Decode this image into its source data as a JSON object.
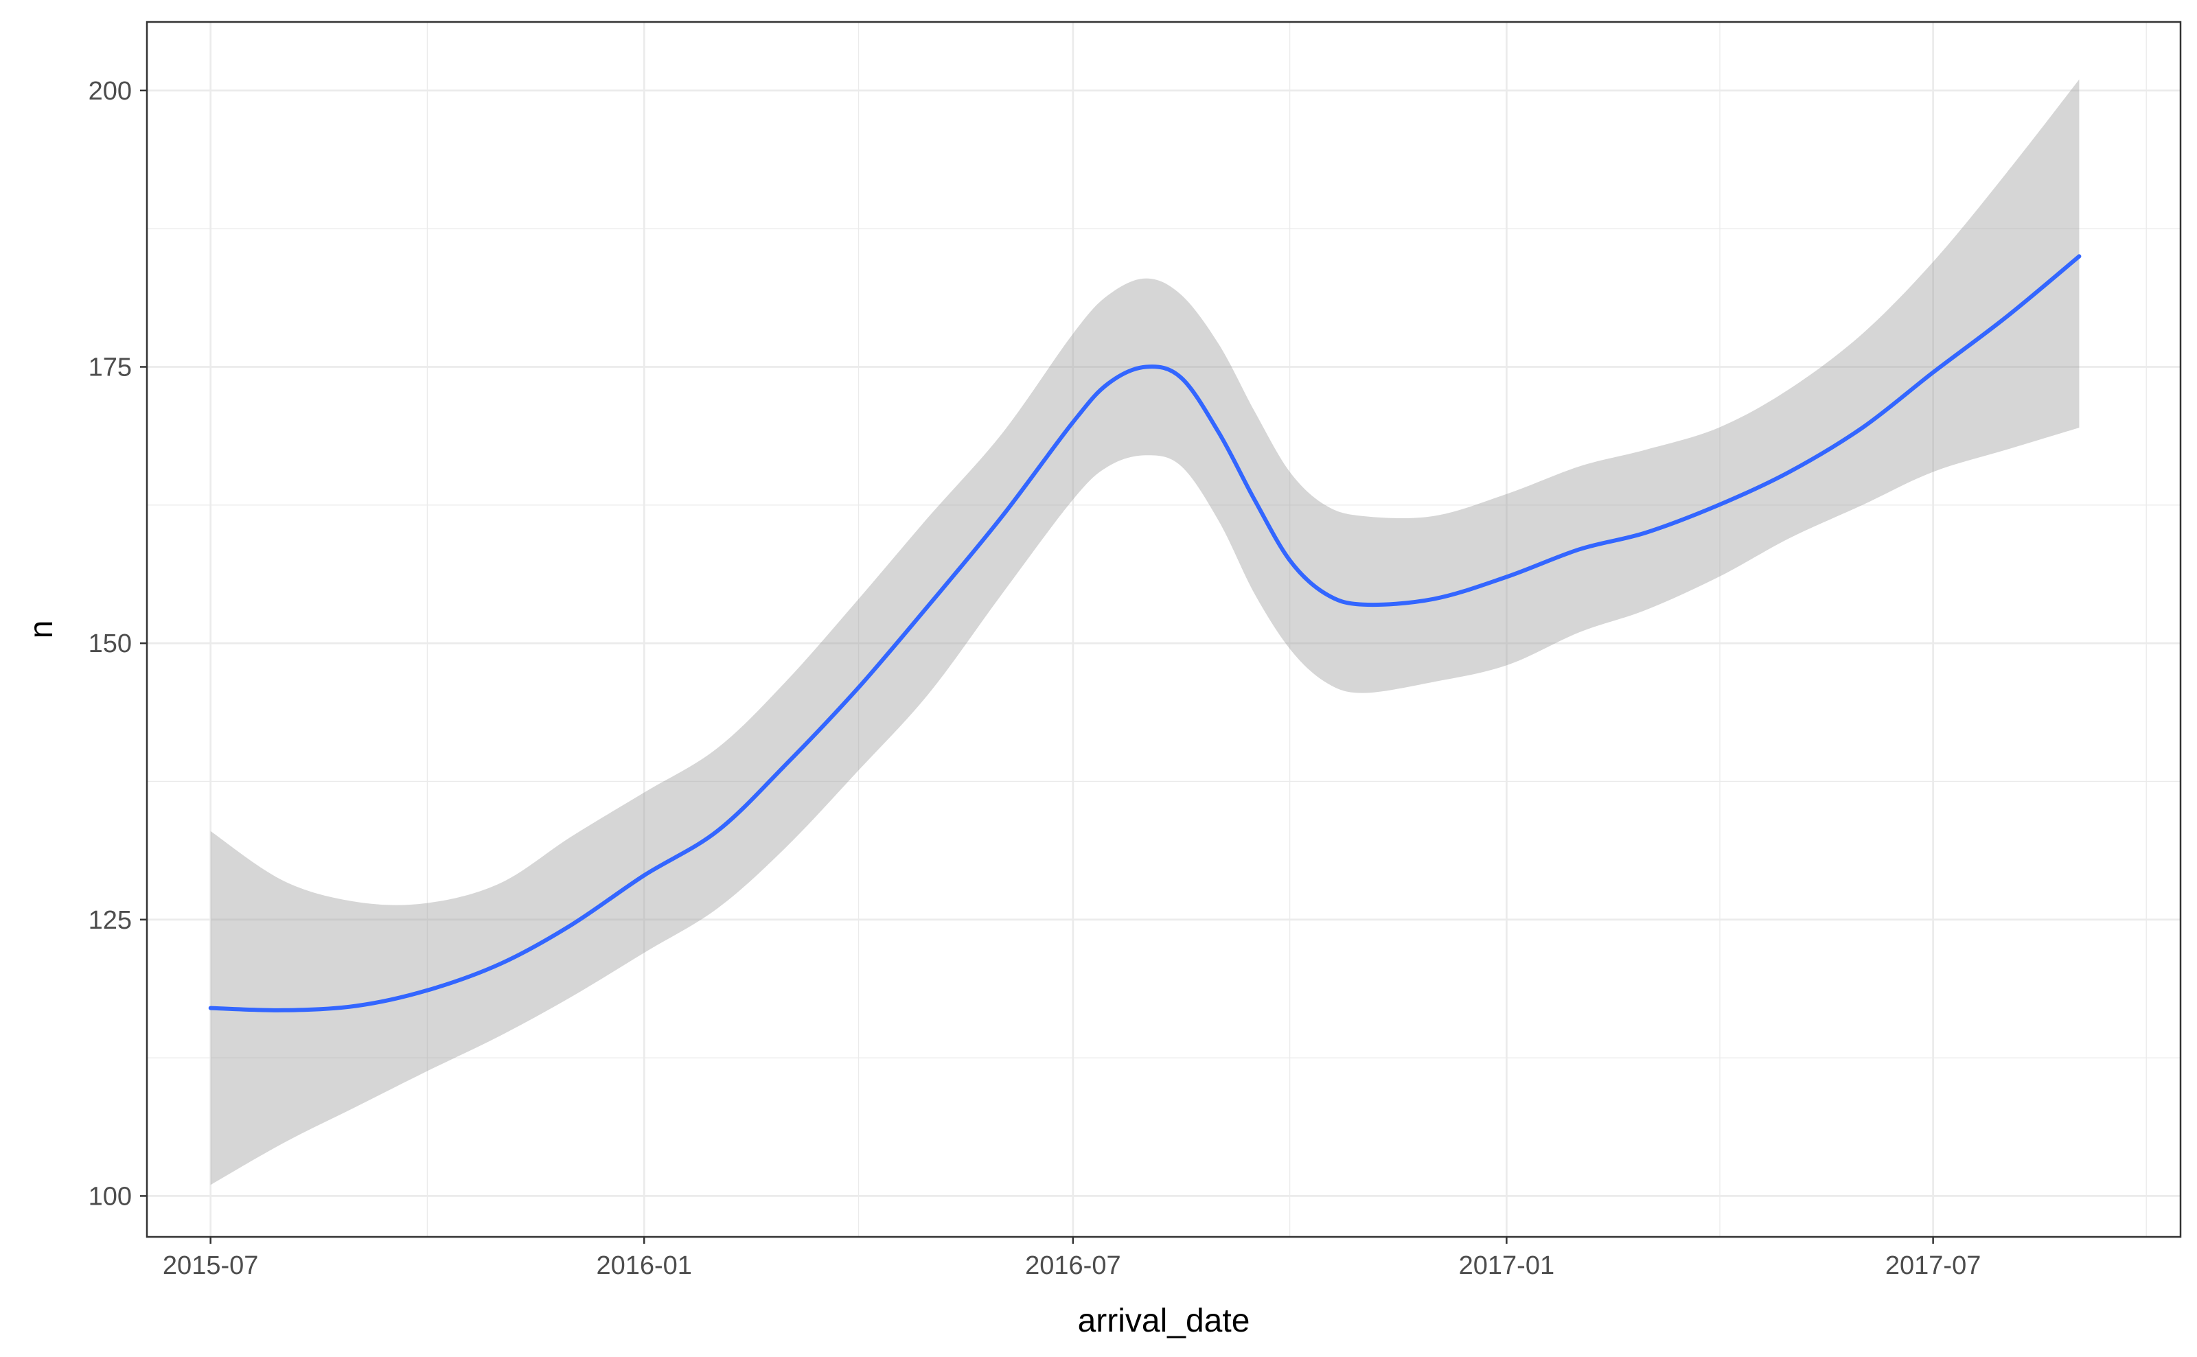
{
  "chart_data": {
    "type": "line",
    "title": "",
    "xlabel": "arrival_date",
    "ylabel": "n",
    "x_axis_type": "date",
    "xlim": [
      "2015-06-04",
      "2017-10-14"
    ],
    "ylim": [
      96.3,
      206.2
    ],
    "x_ticks": [
      {
        "date": "2015-07-01",
        "label": "2015-07"
      },
      {
        "date": "2016-01-01",
        "label": "2016-01"
      },
      {
        "date": "2016-07-01",
        "label": "2016-07"
      },
      {
        "date": "2017-01-01",
        "label": "2017-01"
      },
      {
        "date": "2017-07-01",
        "label": "2017-07"
      }
    ],
    "y_ticks": [
      100,
      125,
      150,
      175,
      200
    ],
    "grid": true,
    "legend": "none",
    "series": [
      {
        "type": "smooth-line-with-confidence-band",
        "color": "#3366FF",
        "band_color": "#999999",
        "points": [
          {
            "x": "2015-07-01",
            "y": 117.0,
            "ymin": 101.0,
            "ymax": 133.0
          },
          {
            "x": "2015-08-01",
            "y": 116.8,
            "ymin": 104.8,
            "ymax": 128.5
          },
          {
            "x": "2015-09-01",
            "y": 117.2,
            "ymin": 108.1,
            "ymax": 126.6
          },
          {
            "x": "2015-10-01",
            "y": 118.6,
            "ymin": 111.3,
            "ymax": 126.5
          },
          {
            "x": "2015-11-01",
            "y": 121.0,
            "ymin": 114.5,
            "ymax": 128.3
          },
          {
            "x": "2015-12-01",
            "y": 124.5,
            "ymin": 118.0,
            "ymax": 132.5
          },
          {
            "x": "2016-01-01",
            "y": 129.0,
            "ymin": 122.0,
            "ymax": 136.5
          },
          {
            "x": "2016-02-01",
            "y": 133.0,
            "ymin": 126.0,
            "ymax": 140.5
          },
          {
            "x": "2016-03-01",
            "y": 139.0,
            "ymin": 131.5,
            "ymax": 146.5
          },
          {
            "x": "2016-04-01",
            "y": 146.0,
            "ymin": 138.5,
            "ymax": 154.0
          },
          {
            "x": "2016-05-01",
            "y": 153.5,
            "ymin": 145.5,
            "ymax": 161.5
          },
          {
            "x": "2016-06-01",
            "y": 161.5,
            "ymin": 154.5,
            "ymax": 169.0
          },
          {
            "x": "2016-07-01",
            "y": 170.0,
            "ymin": 163.0,
            "ymax": 178.0
          },
          {
            "x": "2016-07-16",
            "y": 173.5,
            "ymin": 166.0,
            "ymax": 181.5
          },
          {
            "x": "2016-08-01",
            "y": 175.0,
            "ymin": 167.0,
            "ymax": 183.0
          },
          {
            "x": "2016-08-16",
            "y": 174.0,
            "ymin": 166.0,
            "ymax": 181.5
          },
          {
            "x": "2016-09-01",
            "y": 169.0,
            "ymin": 161.0,
            "ymax": 177.0
          },
          {
            "x": "2016-09-16",
            "y": 163.0,
            "ymin": 154.5,
            "ymax": 171.0
          },
          {
            "x": "2016-10-01",
            "y": 157.5,
            "ymin": 149.5,
            "ymax": 165.5
          },
          {
            "x": "2016-10-16",
            "y": 154.5,
            "ymin": 146.5,
            "ymax": 162.5
          },
          {
            "x": "2016-11-01",
            "y": 153.5,
            "ymin": 145.5,
            "ymax": 161.5
          },
          {
            "x": "2016-12-01",
            "y": 154.0,
            "ymin": 146.5,
            "ymax": 161.5
          },
          {
            "x": "2017-01-01",
            "y": 156.0,
            "ymin": 148.0,
            "ymax": 163.5
          },
          {
            "x": "2017-02-01",
            "y": 158.5,
            "ymin": 151.0,
            "ymax": 166.0
          },
          {
            "x": "2017-03-01",
            "y": 160.0,
            "ymin": 153.0,
            "ymax": 167.5
          },
          {
            "x": "2017-04-01",
            "y": 162.5,
            "ymin": 156.0,
            "ymax": 169.5
          },
          {
            "x": "2017-05-01",
            "y": 165.5,
            "ymin": 159.5,
            "ymax": 173.0
          },
          {
            "x": "2017-06-01",
            "y": 169.5,
            "ymin": 162.5,
            "ymax": 178.0
          },
          {
            "x": "2017-07-01",
            "y": 174.5,
            "ymin": 165.5,
            "ymax": 184.5
          },
          {
            "x": "2017-08-01",
            "y": 179.5,
            "ymin": 167.5,
            "ymax": 192.5
          },
          {
            "x": "2017-09-01",
            "y": 185.0,
            "ymin": 169.5,
            "ymax": 201.0
          }
        ]
      }
    ]
  }
}
